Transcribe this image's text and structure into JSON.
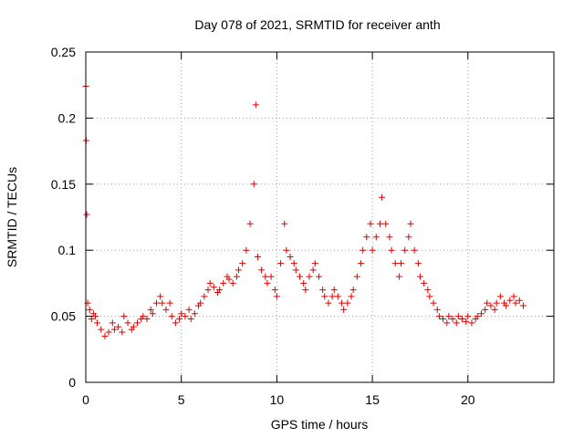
{
  "chart_data": {
    "type": "scatter",
    "title": "Day 078 of 2021, SRMTID for receiver anth",
    "xlabel": "GPS time / hours",
    "ylabel": "SRMTID / TECUs",
    "xlim": [
      0,
      24.5
    ],
    "ylim": [
      0,
      0.25
    ],
    "xticks": [
      0,
      5,
      10,
      15,
      20
    ],
    "xtick_labels": [
      "0",
      "5",
      "10",
      "15",
      "20"
    ],
    "yticks": [
      0,
      0.05,
      0.1,
      0.15,
      0.2,
      0.25
    ],
    "ytick_labels": [
      "0",
      "0.05",
      "0.1",
      "0.15",
      "0.2",
      "0.25"
    ],
    "grid": true,
    "marker": "+",
    "series": [
      {
        "name": "SRMTID",
        "color": "#e00000",
        "x": [
          0.0,
          0.02,
          0.05,
          0.1,
          0.2,
          0.3,
          0.4,
          0.5,
          0.6,
          0.8,
          1.0,
          1.2,
          1.4,
          1.5,
          1.7,
          1.9,
          2.0,
          2.2,
          2.4,
          2.5,
          2.7,
          2.9,
          3.0,
          3.2,
          3.4,
          3.5,
          3.7,
          3.9,
          4.0,
          4.2,
          4.4,
          4.5,
          4.7,
          4.9,
          5.0,
          5.2,
          5.4,
          5.5,
          5.7,
          5.9,
          6.0,
          6.2,
          6.4,
          6.5,
          6.7,
          6.9,
          7.0,
          7.2,
          7.4,
          7.5,
          7.7,
          7.9,
          8.0,
          8.2,
          8.4,
          8.6,
          8.8,
          8.9,
          9.0,
          9.2,
          9.4,
          9.5,
          9.7,
          9.9,
          10.0,
          10.2,
          10.4,
          10.5,
          10.7,
          10.9,
          11.0,
          11.2,
          11.4,
          11.5,
          11.7,
          11.9,
          12.0,
          12.2,
          12.4,
          12.5,
          12.7,
          12.9,
          13.0,
          13.2,
          13.4,
          13.5,
          13.7,
          13.9,
          14.0,
          14.2,
          14.4,
          14.5,
          14.7,
          14.9,
          15.0,
          15.2,
          15.4,
          15.5,
          15.7,
          15.9,
          16.0,
          16.2,
          16.4,
          16.5,
          16.7,
          16.9,
          17.0,
          17.2,
          17.4,
          17.5,
          17.7,
          17.9,
          18.0,
          18.2,
          18.4,
          18.5,
          18.7,
          18.9,
          19.0,
          19.2,
          19.4,
          19.5,
          19.7,
          19.9,
          20.0,
          20.2,
          20.4,
          20.5,
          20.7,
          20.9,
          21.0,
          21.2,
          21.4,
          21.5,
          21.7,
          21.9,
          22.0,
          22.2,
          22.4,
          22.5,
          22.7,
          22.9
        ],
        "y": [
          0.224,
          0.183,
          0.127,
          0.06,
          0.055,
          0.048,
          0.052,
          0.05,
          0.045,
          0.04,
          0.035,
          0.038,
          0.045,
          0.04,
          0.042,
          0.038,
          0.05,
          0.045,
          0.04,
          0.042,
          0.045,
          0.048,
          0.05,
          0.048,
          0.055,
          0.052,
          0.06,
          0.065,
          0.06,
          0.055,
          0.06,
          0.05,
          0.045,
          0.048,
          0.052,
          0.05,
          0.055,
          0.048,
          0.052,
          0.058,
          0.06,
          0.065,
          0.07,
          0.075,
          0.072,
          0.068,
          0.07,
          0.075,
          0.08,
          0.078,
          0.075,
          0.08,
          0.085,
          0.09,
          0.1,
          0.12,
          0.15,
          0.21,
          0.095,
          0.085,
          0.08,
          0.075,
          0.08,
          0.07,
          0.065,
          0.09,
          0.12,
          0.1,
          0.095,
          0.09,
          0.085,
          0.08,
          0.075,
          0.07,
          0.08,
          0.085,
          0.09,
          0.08,
          0.07,
          0.065,
          0.06,
          0.065,
          0.07,
          0.065,
          0.06,
          0.055,
          0.06,
          0.065,
          0.07,
          0.08,
          0.09,
          0.1,
          0.11,
          0.12,
          0.1,
          0.11,
          0.12,
          0.14,
          0.12,
          0.11,
          0.1,
          0.09,
          0.08,
          0.09,
          0.1,
          0.11,
          0.12,
          0.1,
          0.09,
          0.08,
          0.075,
          0.07,
          0.065,
          0.06,
          0.055,
          0.05,
          0.048,
          0.045,
          0.05,
          0.048,
          0.045,
          0.05,
          0.048,
          0.046,
          0.05,
          0.045,
          0.048,
          0.05,
          0.052,
          0.055,
          0.06,
          0.058,
          0.055,
          0.06,
          0.065,
          0.06,
          0.058,
          0.062,
          0.065,
          0.06,
          0.062,
          0.058
        ]
      }
    ]
  }
}
